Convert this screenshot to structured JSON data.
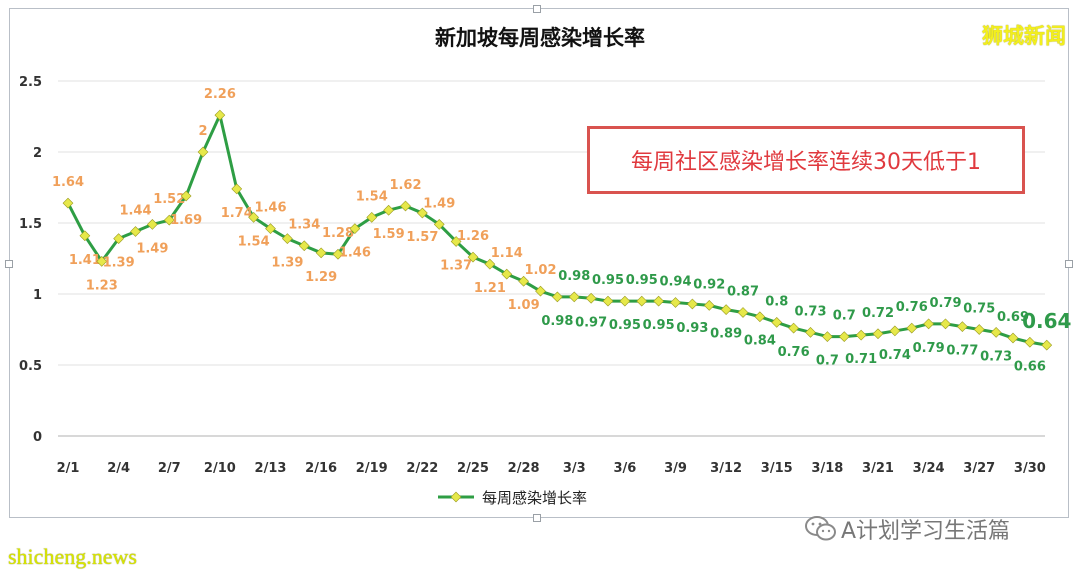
{
  "title": "新加坡每周感染增长率",
  "brand": "狮城新闻",
  "callout": "每周社区感染增长率连续30天低于1",
  "watermark_left": "shicheng.news",
  "watermark_right": "A计划学习生活篇",
  "icons": {
    "watermark": "wechat-icon"
  },
  "colors": {
    "line": "#2e9e44",
    "marker": "#e6e84a",
    "orange_label": "#f0a05a",
    "green_label": "#2f9a4a",
    "callout": "#e0393e"
  },
  "chart_data": {
    "type": "line",
    "title": "新加坡每周感染增长率",
    "xlabel": "",
    "ylabel": "",
    "ylim": [
      0,
      2.5
    ],
    "yticks": [
      "0",
      "0.5",
      "1",
      "1.5",
      "2",
      "2.5"
    ],
    "grid": true,
    "legend_position": "bottom",
    "categories": [
      "2/1",
      "2/2",
      "2/3",
      "2/4",
      "2/5",
      "2/6",
      "2/7",
      "2/8",
      "2/9",
      "2/10",
      "2/11",
      "2/12",
      "2/13",
      "2/14",
      "2/15",
      "2/16",
      "2/17",
      "2/18",
      "2/19",
      "2/20",
      "2/21",
      "2/22",
      "2/23",
      "2/24",
      "2/25",
      "2/26",
      "2/27",
      "2/28",
      "3/1",
      "3/2",
      "3/3",
      "3/4",
      "3/5",
      "3/6",
      "3/7",
      "3/8",
      "3/9",
      "3/10",
      "3/11",
      "3/12",
      "3/13",
      "3/14",
      "3/15",
      "3/16",
      "3/17",
      "3/18",
      "3/19",
      "3/20",
      "3/21",
      "3/22",
      "3/23",
      "3/24",
      "3/25",
      "3/26",
      "3/27",
      "3/28",
      "3/29",
      "3/30",
      "3/31"
    ],
    "xtick_labels": [
      "2/1",
      "2/4",
      "2/7",
      "2/10",
      "2/13",
      "2/16",
      "2/19",
      "2/22",
      "2/25",
      "2/28",
      "3/3",
      "3/6",
      "3/9",
      "3/12",
      "3/15",
      "3/18",
      "3/21",
      "3/24",
      "3/27",
      "3/30"
    ],
    "series": [
      {
        "name": "每周感染增长率",
        "values": [
          1.64,
          1.41,
          1.23,
          1.39,
          1.44,
          1.49,
          1.52,
          1.69,
          2,
          2.26,
          1.74,
          1.54,
          1.46,
          1.39,
          1.34,
          1.29,
          1.28,
          1.46,
          1.54,
          1.59,
          1.62,
          1.57,
          1.49,
          1.37,
          1.26,
          1.21,
          1.14,
          1.09,
          1.02,
          0.98,
          0.98,
          0.97,
          0.95,
          0.95,
          0.95,
          0.95,
          0.94,
          0.93,
          0.92,
          0.89,
          0.87,
          0.84,
          0.8,
          0.76,
          0.73,
          0.7,
          0.7,
          0.71,
          0.72,
          0.74,
          0.76,
          0.79,
          0.79,
          0.77,
          0.75,
          0.73,
          0.69,
          0.66,
          0.64
        ]
      }
    ],
    "label_positions": [
      "above",
      "below",
      "below",
      "below",
      "above",
      "below",
      "above",
      "below",
      "above",
      "above",
      "below",
      "below",
      "above",
      "below",
      "above",
      "below",
      "above",
      "below",
      "above",
      "below",
      "above",
      "below",
      "above",
      "below",
      "above",
      "below",
      "above",
      "below",
      "above",
      "below",
      "above",
      "below",
      "above",
      "below",
      "above",
      "below",
      "above",
      "below",
      "above",
      "below",
      "above",
      "below",
      "above",
      "below",
      "above",
      "below",
      "above",
      "below",
      "above",
      "below",
      "above",
      "below",
      "above",
      "below",
      "above",
      "below",
      "above",
      "below",
      "above"
    ]
  }
}
